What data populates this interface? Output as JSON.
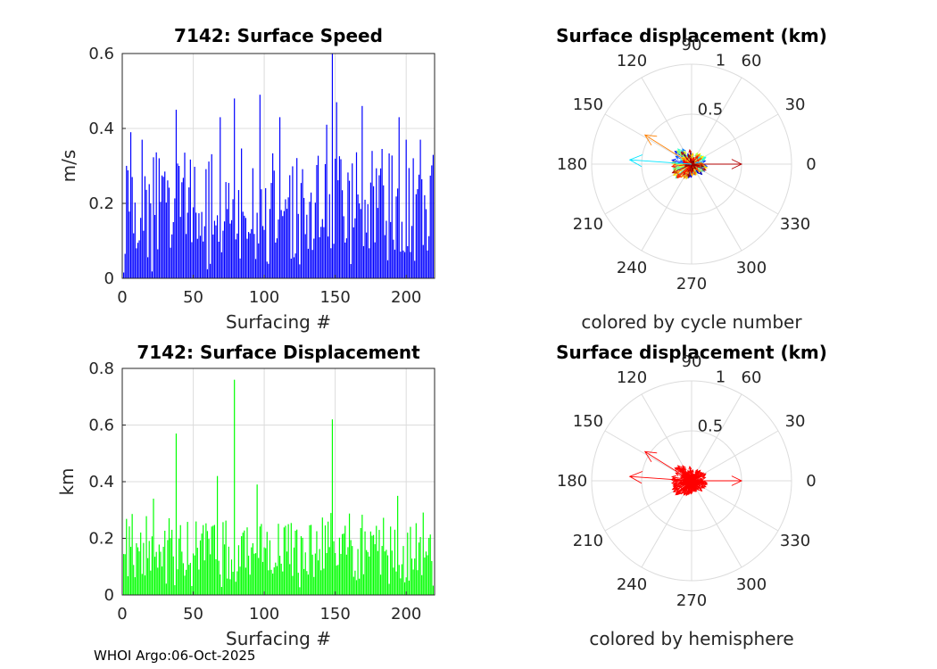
{
  "footer": "WHOI Argo:06-Oct-2025",
  "colors": {
    "speed_bar": "#0000ff",
    "displacement_bar": "#00ff00",
    "hemisphere_arrow": "#ff0000"
  },
  "chart_data": [
    {
      "id": "speed",
      "type": "bar",
      "title": "7142: Surface Speed",
      "xlabel": "Surfacing #",
      "ylabel": "m/s",
      "xlim": [
        0,
        220
      ],
      "ylim": [
        0,
        0.6
      ],
      "xticks": [
        0,
        50,
        100,
        150,
        200
      ],
      "yticks": [
        0,
        0.2,
        0.4,
        0.6
      ],
      "yticklabels": [
        "0",
        "0.2",
        "0.4",
        "0.6"
      ],
      "color": "#0000ff",
      "seed": 7142,
      "highlights": [
        [
          6,
          0.39
        ],
        [
          14,
          0.37
        ],
        [
          38,
          0.45
        ],
        [
          69,
          0.43
        ],
        [
          79,
          0.48
        ],
        [
          97,
          0.49
        ],
        [
          111,
          0.43
        ],
        [
          144,
          0.41
        ],
        [
          148,
          0.6
        ],
        [
          151,
          0.47
        ],
        [
          169,
          0.46
        ],
        [
          195,
          0.43
        ],
        [
          200,
          0.37
        ],
        [
          210,
          0.37
        ]
      ]
    },
    {
      "id": "displacement",
      "type": "bar",
      "title": "7142: Surface Displacement",
      "xlabel": "Surfacing #",
      "ylabel": "km",
      "xlim": [
        0,
        220
      ],
      "ylim": [
        0,
        0.8
      ],
      "xticks": [
        0,
        50,
        100,
        150,
        200
      ],
      "yticks": [
        0,
        0.2,
        0.4,
        0.6,
        0.8
      ],
      "yticklabels": [
        "0",
        "0.2",
        "0.4",
        "0.6",
        "0.8"
      ],
      "color": "#00ff00",
      "seed": 2718,
      "highlights": [
        [
          22,
          0.34
        ],
        [
          38,
          0.57
        ],
        [
          67,
          0.42
        ],
        [
          79,
          0.76
        ],
        [
          95,
          0.39
        ],
        [
          148,
          0.62
        ],
        [
          194,
          0.35
        ],
        [
          201,
          0.22
        ]
      ]
    },
    {
      "id": "polar-cycle",
      "type": "polar-arrows",
      "title": "Surface displacement (km)",
      "caption": "colored by cycle number",
      "rmax": 1,
      "rings": [
        0.5,
        1
      ],
      "ring_labels": [
        "0.5",
        "1"
      ],
      "angles": [
        0,
        30,
        60,
        90,
        120,
        150,
        180,
        210,
        240,
        270,
        300,
        330
      ],
      "coloring": "cycle",
      "seed": 314,
      "count": 220,
      "big_arrows": [
        [
          0.55,
          148
        ],
        [
          0.62,
          176
        ],
        [
          0.5,
          0
        ]
      ]
    },
    {
      "id": "polar-hemisphere",
      "type": "polar-arrows",
      "title": "Surface displacement (km)",
      "caption": "colored by hemisphere",
      "rmax": 1,
      "rings": [
        0.5,
        1
      ],
      "ring_labels": [
        "0.5",
        "1"
      ],
      "angles": [
        0,
        30,
        60,
        90,
        120,
        150,
        180,
        210,
        240,
        270,
        300,
        330
      ],
      "coloring": "hemisphere",
      "color": "#ff0000",
      "seed": 314,
      "count": 220,
      "big_arrows": [
        [
          0.55,
          148
        ],
        [
          0.62,
          176
        ],
        [
          0.5,
          0
        ]
      ]
    }
  ]
}
